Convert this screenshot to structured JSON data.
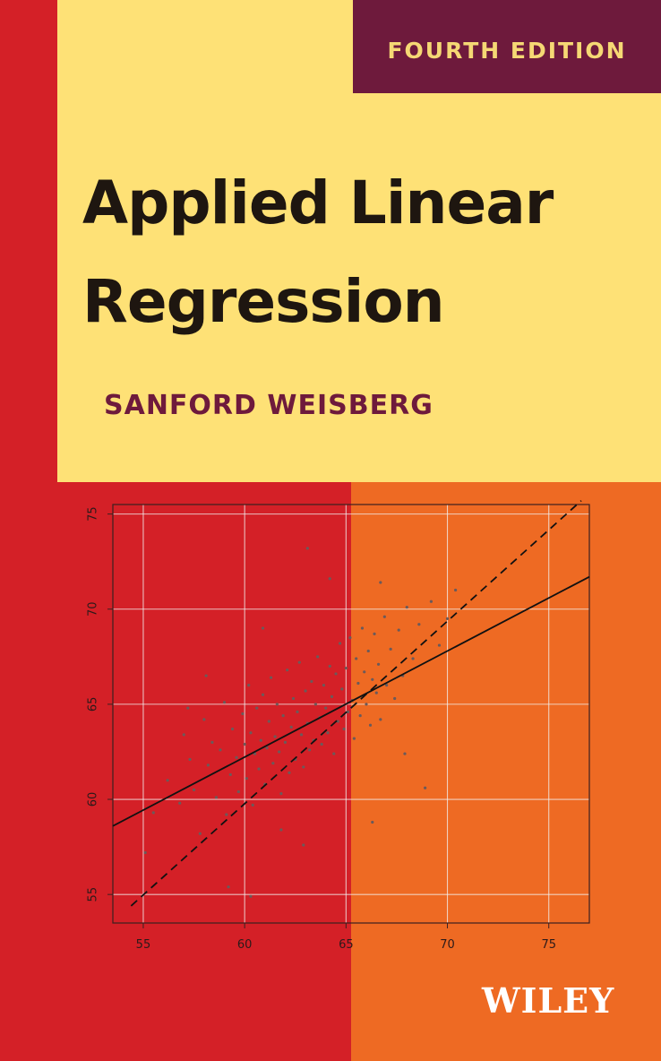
{
  "cover": {
    "edition": "FOURTH EDITION",
    "title_line1": "Applied Linear",
    "title_line2": "Regression",
    "author": "SANFORD WEISBERG",
    "publisher": "WILEY"
  },
  "colors": {
    "red": "#d42027",
    "orange": "#ee6a23",
    "yellow": "#fee176",
    "maroon": "#6e1a3c",
    "edition_text": "#f5d874",
    "title_text": "#1e1610",
    "points": "#6b5a5a"
  },
  "chart_data": {
    "type": "scatter",
    "title": "",
    "xlabel": "",
    "ylabel": "",
    "xlim": [
      53.5,
      77
    ],
    "ylim": [
      53.5,
      75.5
    ],
    "x_ticks": [
      "55",
      "60",
      "65",
      "70",
      "75"
    ],
    "y_ticks": [
      "55",
      "60",
      "65",
      "70",
      "75"
    ],
    "grid": true,
    "series": [
      {
        "kind": "points",
        "points_estimated": [
          [
            55.1,
            57.2
          ],
          [
            55.5,
            59.3
          ],
          [
            56.2,
            61.0
          ],
          [
            56.8,
            59.8
          ],
          [
            57.0,
            63.4
          ],
          [
            57.3,
            62.1
          ],
          [
            57.5,
            60.5
          ],
          [
            57.8,
            58.2
          ],
          [
            58.0,
            64.2
          ],
          [
            58.2,
            61.8
          ],
          [
            58.4,
            63.0
          ],
          [
            58.6,
            60.1
          ],
          [
            58.8,
            62.6
          ],
          [
            59.0,
            65.1
          ],
          [
            59.1,
            59.2
          ],
          [
            59.3,
            61.3
          ],
          [
            59.4,
            63.7
          ],
          [
            59.6,
            62.2
          ],
          [
            59.7,
            60.4
          ],
          [
            59.9,
            64.5
          ],
          [
            60.0,
            62.9
          ],
          [
            60.1,
            61.1
          ],
          [
            60.2,
            66.0
          ],
          [
            60.3,
            63.5
          ],
          [
            60.4,
            59.7
          ],
          [
            60.5,
            62.4
          ],
          [
            60.6,
            64.8
          ],
          [
            60.7,
            61.6
          ],
          [
            60.8,
            63.1
          ],
          [
            60.9,
            65.5
          ],
          [
            61.0,
            60.8
          ],
          [
            61.1,
            62.7
          ],
          [
            61.2,
            64.1
          ],
          [
            61.3,
            66.4
          ],
          [
            61.4,
            61.9
          ],
          [
            61.5,
            63.3
          ],
          [
            61.6,
            65.0
          ],
          [
            61.7,
            62.5
          ],
          [
            61.8,
            60.3
          ],
          [
            61.9,
            64.4
          ],
          [
            62.0,
            63.0
          ],
          [
            62.1,
            66.8
          ],
          [
            62.2,
            61.4
          ],
          [
            62.3,
            63.8
          ],
          [
            62.4,
            65.3
          ],
          [
            62.5,
            62.1
          ],
          [
            62.6,
            64.6
          ],
          [
            62.7,
            67.2
          ],
          [
            62.8,
            63.4
          ],
          [
            62.9,
            61.7
          ],
          [
            63.0,
            65.7
          ],
          [
            63.1,
            64.0
          ],
          [
            63.2,
            62.6
          ],
          [
            63.3,
            66.2
          ],
          [
            63.4,
            63.1
          ],
          [
            63.5,
            65.0
          ],
          [
            63.6,
            67.5
          ],
          [
            63.7,
            64.3
          ],
          [
            63.8,
            62.9
          ],
          [
            63.9,
            66.0
          ],
          [
            64.0,
            64.8
          ],
          [
            64.1,
            63.5
          ],
          [
            64.2,
            67.0
          ],
          [
            64.3,
            65.4
          ],
          [
            64.4,
            62.4
          ],
          [
            64.5,
            66.6
          ],
          [
            64.6,
            64.1
          ],
          [
            64.7,
            68.2
          ],
          [
            64.8,
            65.8
          ],
          [
            64.9,
            63.7
          ],
          [
            65.0,
            66.9
          ],
          [
            65.1,
            64.6
          ],
          [
            65.2,
            68.5
          ],
          [
            65.3,
            65.2
          ],
          [
            65.4,
            63.2
          ],
          [
            65.5,
            67.4
          ],
          [
            65.6,
            66.1
          ],
          [
            65.7,
            64.4
          ],
          [
            65.8,
            69.0
          ],
          [
            65.9,
            66.7
          ],
          [
            66.0,
            65.0
          ],
          [
            66.1,
            67.8
          ],
          [
            66.2,
            63.9
          ],
          [
            66.3,
            66.3
          ],
          [
            66.4,
            68.7
          ],
          [
            66.5,
            65.6
          ],
          [
            66.6,
            67.1
          ],
          [
            66.7,
            64.2
          ],
          [
            66.9,
            69.6
          ],
          [
            67.0,
            66.0
          ],
          [
            67.2,
            67.9
          ],
          [
            67.4,
            65.3
          ],
          [
            67.6,
            68.9
          ],
          [
            67.8,
            66.5
          ],
          [
            68.0,
            70.1
          ],
          [
            68.3,
            67.4
          ],
          [
            68.6,
            69.2
          ],
          [
            68.9,
            60.6
          ],
          [
            69.2,
            70.4
          ],
          [
            69.6,
            68.1
          ],
          [
            70.0,
            69.5
          ],
          [
            70.4,
            71.0
          ],
          [
            63.1,
            73.2
          ],
          [
            64.2,
            71.6
          ],
          [
            59.2,
            55.4
          ],
          [
            60.3,
            54.9
          ],
          [
            58.1,
            66.5
          ],
          [
            61.8,
            58.4
          ],
          [
            66.3,
            58.8
          ],
          [
            57.2,
            64.8
          ],
          [
            62.9,
            57.6
          ],
          [
            66.7,
            71.4
          ],
          [
            60.9,
            69.0
          ],
          [
            67.9,
            62.4
          ]
        ]
      },
      {
        "kind": "line",
        "name": "",
        "style": "solid",
        "x": [
          53.5,
          77
        ],
        "y": [
          58.6,
          71.7
        ]
      },
      {
        "kind": "line",
        "name": "",
        "style": "dashed",
        "x": [
          54.4,
          76.6
        ],
        "y": [
          54.4,
          75.7
        ]
      }
    ]
  }
}
